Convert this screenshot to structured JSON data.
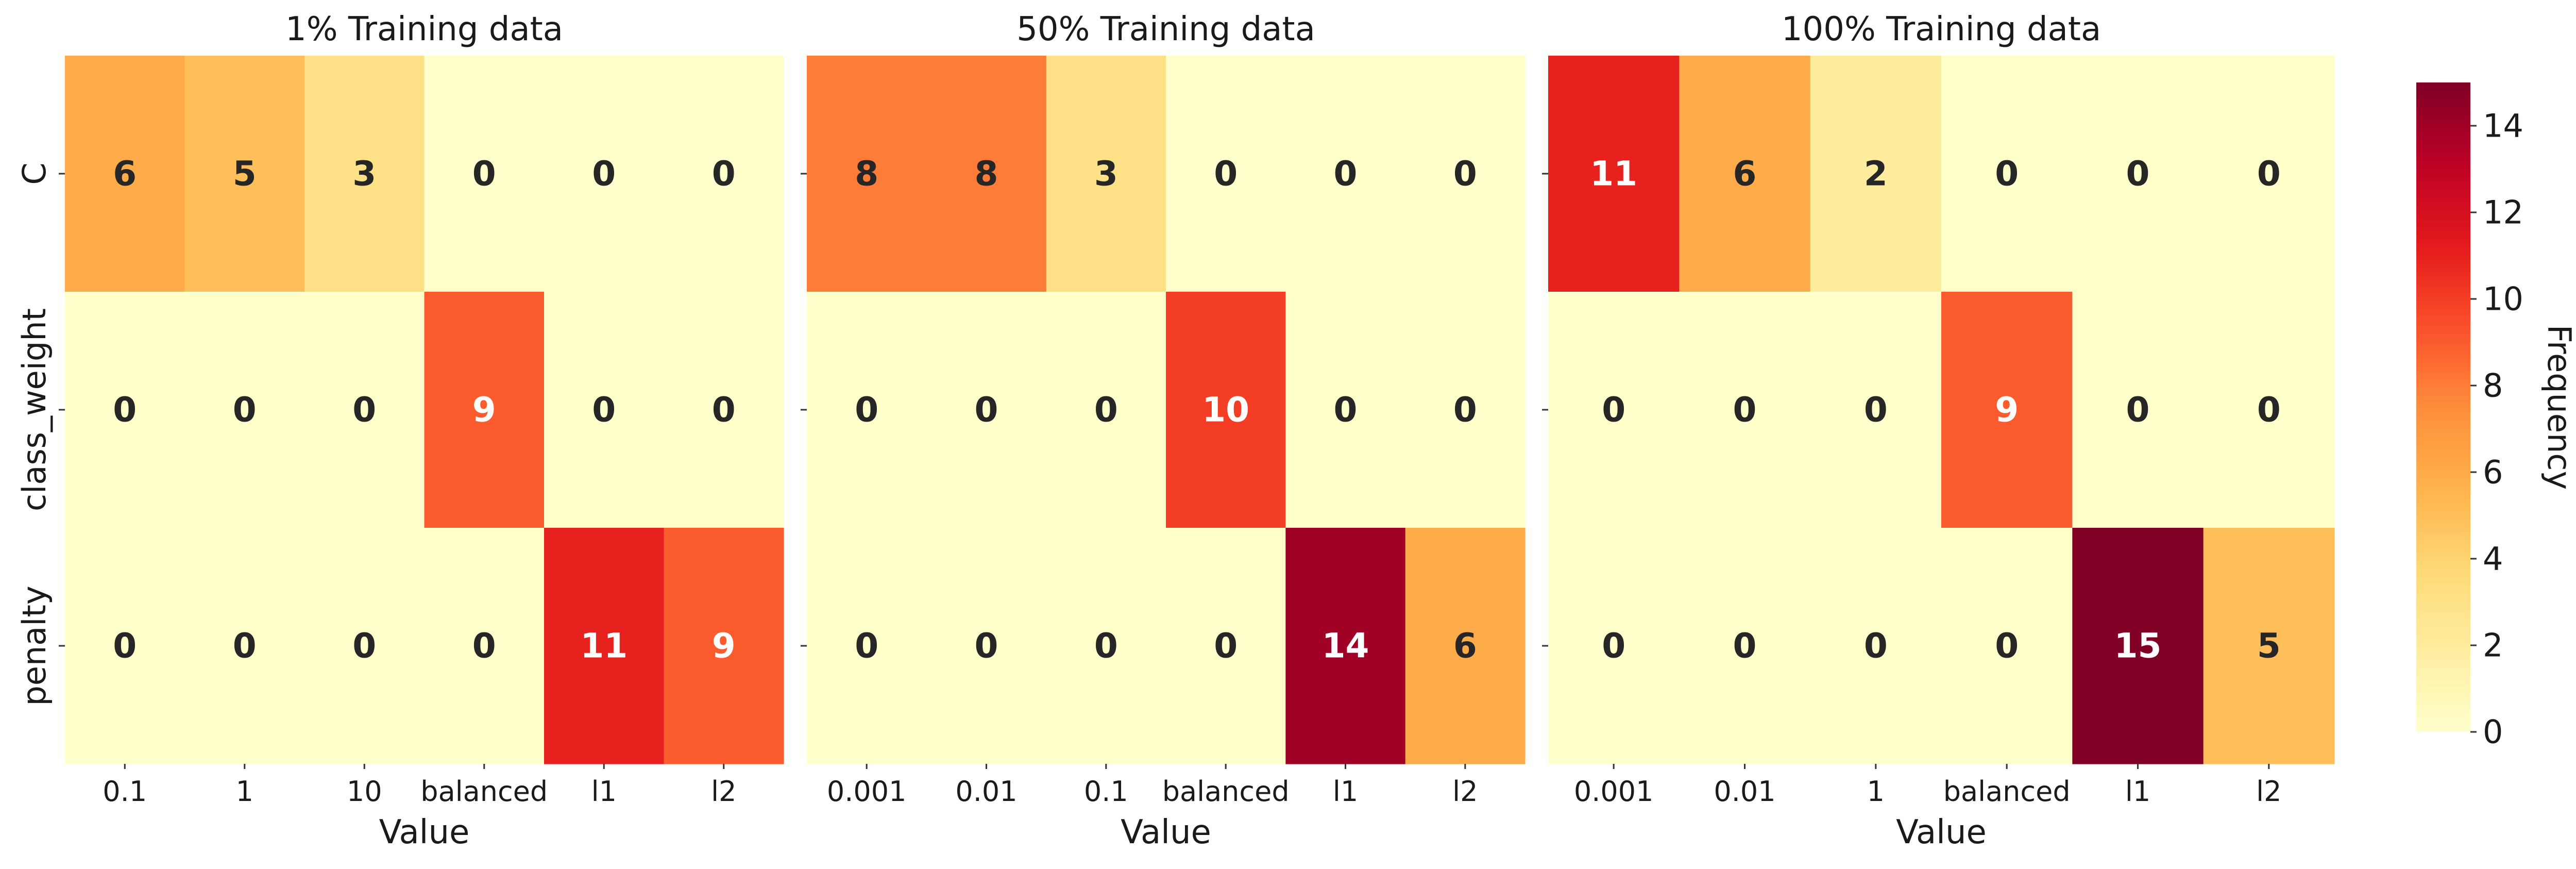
{
  "chart_data": {
    "type": "heatmap",
    "colormap": "YlOrRd",
    "vmin": 0,
    "vmax": 15,
    "colorbar": {
      "label": "Frequency",
      "ticks": [
        "0",
        "2",
        "4",
        "6",
        "8",
        "10",
        "12",
        "14"
      ]
    },
    "panels": [
      {
        "title": "1% Training data",
        "xlabel": "Value",
        "ylabel": "",
        "rows": [
          "C",
          "class_weight",
          "penalty"
        ],
        "columns": [
          "0.1",
          "1",
          "10",
          "balanced",
          "l1",
          "l2"
        ],
        "values": [
          [
            6,
            5,
            3,
            0,
            0,
            0
          ],
          [
            0,
            0,
            0,
            9,
            0,
            0
          ],
          [
            0,
            0,
            0,
            0,
            11,
            9
          ]
        ]
      },
      {
        "title": "50% Training data",
        "xlabel": "Value",
        "ylabel": "",
        "rows": [
          "C",
          "class_weight",
          "penalty"
        ],
        "columns": [
          "0.001",
          "0.01",
          "0.1",
          "balanced",
          "l1",
          "l2"
        ],
        "values": [
          [
            8,
            8,
            3,
            0,
            0,
            0
          ],
          [
            0,
            0,
            0,
            10,
            0,
            0
          ],
          [
            0,
            0,
            0,
            0,
            14,
            6
          ]
        ]
      },
      {
        "title": "100% Training data",
        "xlabel": "Value",
        "ylabel": "",
        "rows": [
          "C",
          "class_weight",
          "penalty"
        ],
        "columns": [
          "0.001",
          "0.01",
          "1",
          "balanced",
          "l1",
          "l2"
        ],
        "values": [
          [
            11,
            6,
            2,
            0,
            0,
            0
          ],
          [
            0,
            0,
            0,
            9,
            0,
            0
          ],
          [
            0,
            0,
            0,
            0,
            15,
            5
          ]
        ]
      }
    ]
  }
}
